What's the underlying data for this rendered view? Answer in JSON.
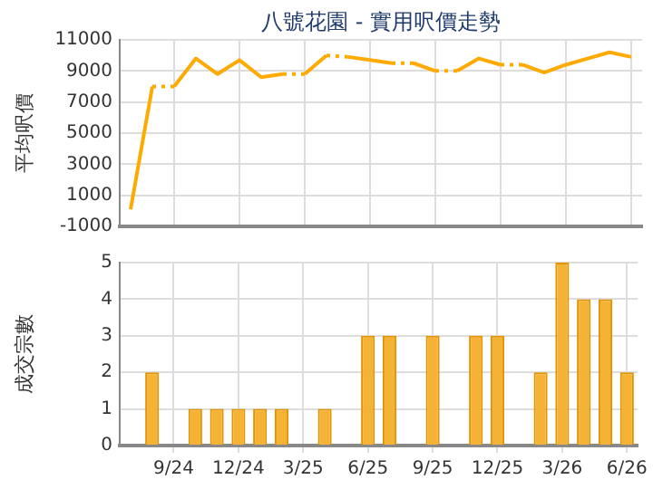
{
  "chart_data": [
    {
      "type": "line",
      "title": "八號花園 - 實用呎價走勢",
      "ylabel": "平均呎價",
      "categories": [
        null,
        null,
        null,
        null,
        null,
        null,
        null,
        null,
        null,
        null,
        null,
        null,
        null,
        null,
        null,
        null,
        null,
        null,
        null,
        null,
        null,
        null,
        null,
        null
      ],
      "series": [
        {
          "color": "#ffaa00",
          "values": [
            100,
            8000,
            8000,
            9800,
            8800,
            9700,
            8600,
            8800,
            8800,
            10000,
            9900,
            9700,
            9500,
            9500,
            9000,
            9000,
            9800,
            9400,
            9400,
            8900,
            9400,
            9800,
            10200,
            9900
          ]
        }
      ],
      "ylim": [
        -1000,
        11000
      ],
      "yticks": [
        -1000,
        1000,
        3000,
        5000,
        7000,
        9000,
        11000
      ],
      "grid": true,
      "tick_labels": "y",
      "marker": "none"
    },
    {
      "type": "bar",
      "ylabel": "成交宗數",
      "categories": [
        null,
        null,
        "9/24",
        null,
        null,
        "12/24",
        null,
        null,
        "3/25",
        null,
        null,
        "6/25",
        null,
        null,
        "9/25",
        null,
        null,
        "12/25",
        null,
        null,
        "3/26",
        null,
        null,
        "6/26"
      ],
      "series": [
        {
          "color": "#f5b335",
          "values": [
            0,
            2,
            0,
            1,
            1,
            1,
            1,
            1,
            0,
            1,
            0,
            3,
            3,
            0,
            3,
            0,
            3,
            3,
            0,
            2,
            5,
            4,
            4,
            2
          ]
        }
      ],
      "ylim": [
        0,
        5
      ],
      "yticks": [
        0,
        1,
        2,
        3,
        4,
        5
      ],
      "grid": true
    }
  ]
}
